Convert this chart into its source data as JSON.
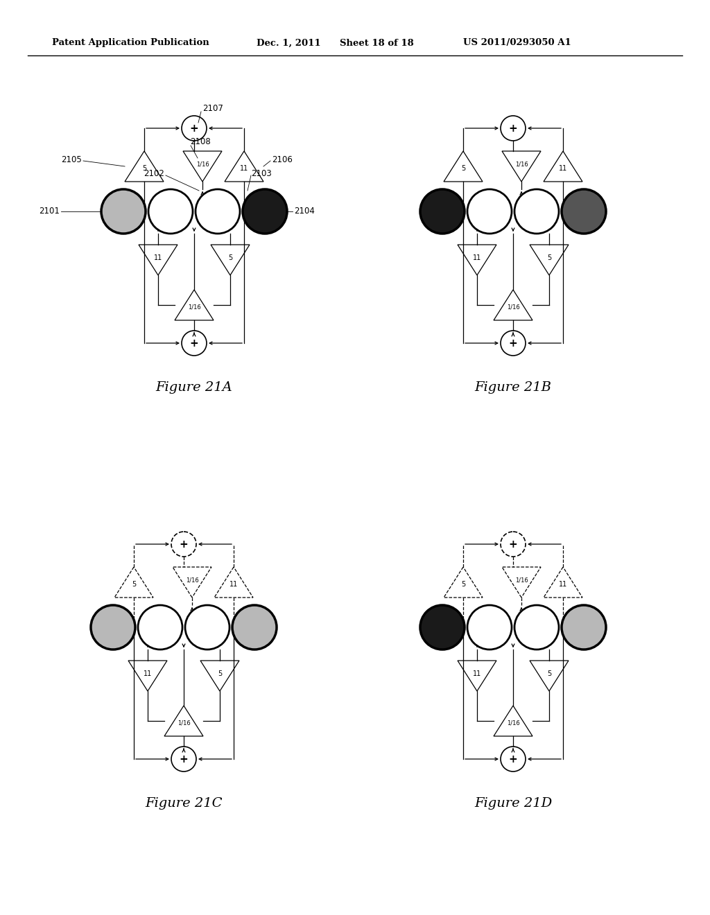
{
  "header_left": "Patent Application Publication",
  "header_mid": "Dec. 1, 2011",
  "header_mid2": "Sheet 18 of 18",
  "header_right": "US 2011/0293050 A1",
  "figures": [
    {
      "label": "Figure 21A",
      "circles": [
        "gray",
        "white",
        "white",
        "black"
      ],
      "show_labels": true,
      "dashed_top": false,
      "dashed_bot": false
    },
    {
      "label": "Figure 21B",
      "circles": [
        "black",
        "white",
        "white",
        "darkgray"
      ],
      "show_labels": false,
      "dashed_top": false,
      "dashed_bot": false
    },
    {
      "label": "Figure 21C",
      "circles": [
        "gray",
        "white",
        "white",
        "gray"
      ],
      "show_labels": false,
      "dashed_top": true,
      "dashed_bot": false
    },
    {
      "label": "Figure 21D",
      "circles": [
        "black",
        "white",
        "white",
        "gray"
      ],
      "show_labels": false,
      "dashed_top": true,
      "dashed_bot": false
    }
  ],
  "bg_color": "#ffffff",
  "fill_map": {
    "gray": "#b8b8b8",
    "white": "#ffffff",
    "black": "#1a1a1a",
    "darkgray": "#555555"
  }
}
